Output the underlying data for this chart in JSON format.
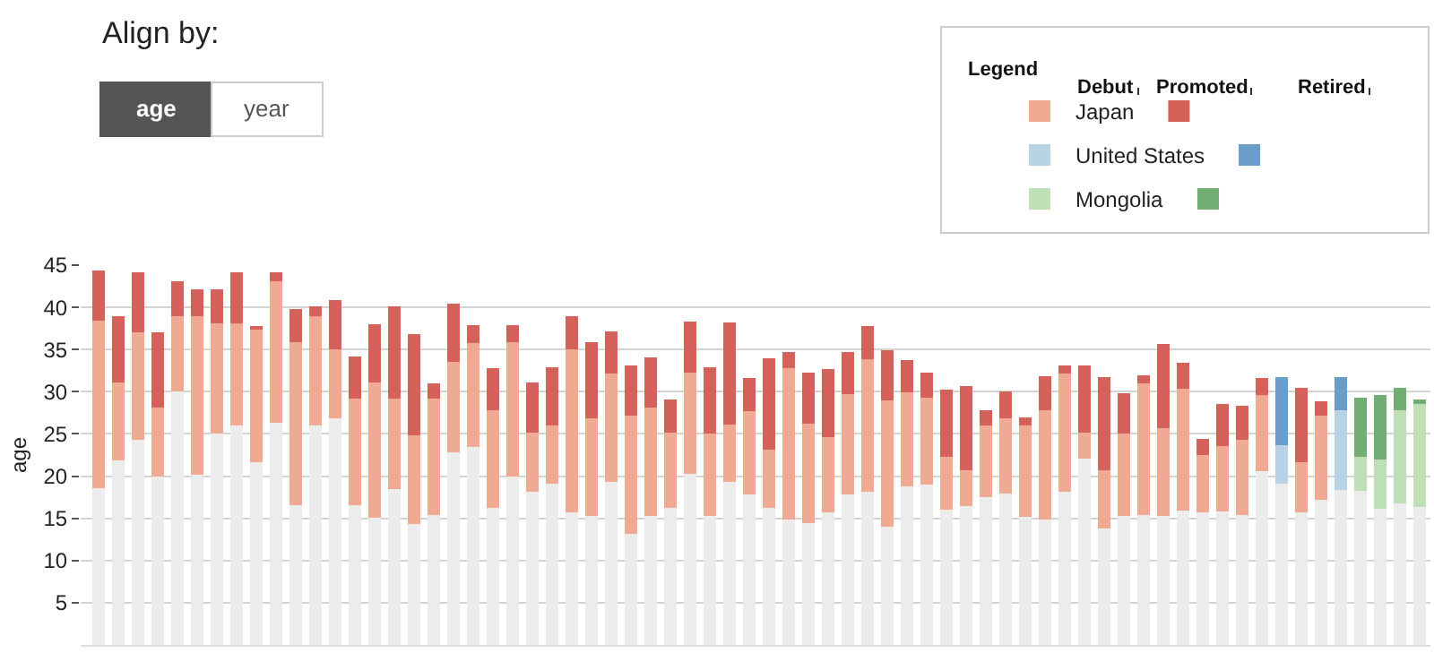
{
  "chart_data": {
    "type": "bar",
    "stacked": true,
    "ylabel": "age",
    "legend_title": "Legend",
    "legend": "top right",
    "grid": "y",
    "tick_labels": "y",
    "annotations": [
      "Align by:",
      "Debut",
      "Promoted",
      "Retired",
      "age",
      "year"
    ],
    "categories": [
      null,
      null,
      null,
      null,
      null,
      null,
      null,
      null,
      null,
      null,
      null,
      null,
      null,
      null,
      null,
      null,
      null,
      null,
      null,
      null,
      null,
      null,
      null,
      null,
      null,
      null,
      null,
      null,
      null,
      null,
      null,
      null,
      null,
      null,
      null,
      null,
      null,
      null,
      null,
      null,
      null,
      null,
      null,
      null,
      null,
      null,
      null,
      null,
      null,
      null,
      null,
      null,
      null,
      null,
      null,
      null,
      null,
      null,
      null,
      null,
      null,
      null,
      null,
      null,
      null,
      null,
      null,
      null
    ],
    "ylim": [
      0,
      45
    ],
    "yticks": [
      5,
      10,
      15,
      20,
      25,
      30,
      35,
      40,
      45
    ],
    "series": [
      {
        "color": "#ececec",
        "values": [
          18.6,
          21.9,
          24.3,
          20.0,
          30.0,
          20.2,
          25.0,
          26.0,
          21.6,
          26.3,
          16.6,
          26.0,
          26.9,
          16.6,
          15.1,
          18.5,
          14.3,
          15.4,
          22.8,
          23.5,
          16.2,
          20.0,
          18.2,
          19.1,
          15.7,
          15.3,
          19.3,
          13.2,
          15.3,
          16.2,
          20.3,
          15.3,
          19.3,
          17.8,
          16.2,
          14.9,
          14.4,
          15.7,
          17.8,
          18.2,
          14.0,
          18.8,
          19.0,
          16.0,
          16.4,
          17.5,
          17.9,
          15.2,
          14.9,
          18.2,
          22.1,
          13.8,
          15.3,
          15.4,
          15.3,
          15.9,
          15.7,
          15.8,
          15.4,
          20.6,
          19.1,
          15.7,
          17.2,
          18.4,
          18.3,
          16.1,
          16.8,
          16.3
        ]
      },
      {
        "name": "Japan",
        "color": "#f0a993",
        "values": [
          19.8,
          9.2,
          12.7,
          8.1,
          9.0,
          18.8,
          13.1,
          12.1,
          15.9,
          16.8,
          19.3,
          12.9,
          8.1,
          12.6,
          16.0,
          10.7,
          10.5,
          13.8,
          10.7,
          12.3,
          11.6,
          15.9,
          7.0,
          6.9,
          19.3,
          11.6,
          12.9,
          14.0,
          12.8,
          9.0,
          12.0,
          9.7,
          6.8,
          9.9,
          6.9,
          17.9,
          11.8,
          8.9,
          11.9,
          15.7,
          15.0,
          11.1,
          10.3,
          6.3,
          4.3,
          8.5,
          9.0,
          10.8,
          12.9,
          14.0,
          3.1,
          6.9,
          9.7,
          15.6,
          10.4,
          14.5,
          6.8,
          7.8,
          8.9,
          9.0,
          null,
          5.9,
          10.0,
          null,
          null,
          null,
          null,
          null
        ]
      },
      {
        "color": "#d4625b",
        "values": [
          6.0,
          7.9,
          7.1,
          8.9,
          4.1,
          3.1,
          4.0,
          6.0,
          0.2,
          1.0,
          3.9,
          1.2,
          5.9,
          5.0,
          6.9,
          10.9,
          12.0,
          1.8,
          6.9,
          2.1,
          5.0,
          2.0,
          5.9,
          6.9,
          3.9,
          9.0,
          5.0,
          5.9,
          6.0,
          3.9,
          6.0,
          7.9,
          12.1,
          3.9,
          10.9,
          1.9,
          6.1,
          8.1,
          5.0,
          3.9,
          5.9,
          3.9,
          3.0,
          7.9,
          10.0,
          1.8,
          3.1,
          1.0,
          4.0,
          0.9,
          7.9,
          11.0,
          4.8,
          0.9,
          10.0,
          3.0,
          1.9,
          5.0,
          4.0,
          2.0,
          null,
          8.9,
          1.7,
          null,
          null,
          null,
          null,
          null
        ]
      },
      {
        "name": "United States",
        "color": "#b8d3e5",
        "values": [
          null,
          null,
          null,
          null,
          null,
          null,
          null,
          null,
          null,
          null,
          null,
          null,
          null,
          null,
          null,
          null,
          null,
          null,
          null,
          null,
          null,
          null,
          null,
          null,
          null,
          null,
          null,
          null,
          null,
          null,
          null,
          null,
          null,
          null,
          null,
          null,
          null,
          null,
          null,
          null,
          null,
          null,
          null,
          null,
          null,
          null,
          null,
          null,
          null,
          null,
          null,
          null,
          null,
          null,
          null,
          null,
          null,
          null,
          null,
          null,
          4.6,
          null,
          null,
          9.4,
          null,
          null,
          null,
          null
        ]
      },
      {
        "color": "#6a9dc8",
        "values": [
          null,
          null,
          null,
          null,
          null,
          null,
          null,
          null,
          null,
          null,
          null,
          null,
          null,
          null,
          null,
          null,
          null,
          null,
          null,
          null,
          null,
          null,
          null,
          null,
          null,
          null,
          null,
          null,
          null,
          null,
          null,
          null,
          null,
          null,
          null,
          null,
          null,
          null,
          null,
          null,
          null,
          null,
          null,
          null,
          null,
          null,
          null,
          null,
          null,
          null,
          null,
          null,
          null,
          null,
          null,
          null,
          null,
          null,
          null,
          null,
          8.0,
          null,
          null,
          3.9,
          null,
          null,
          null,
          null
        ]
      },
      {
        "name": "Mongolia",
        "color": "#bfdfb6",
        "values": [
          null,
          null,
          null,
          null,
          null,
          null,
          null,
          null,
          null,
          null,
          null,
          null,
          null,
          null,
          null,
          null,
          null,
          null,
          null,
          null,
          null,
          null,
          null,
          null,
          null,
          null,
          null,
          null,
          null,
          null,
          null,
          null,
          null,
          null,
          null,
          null,
          null,
          null,
          null,
          null,
          null,
          null,
          null,
          null,
          null,
          null,
          null,
          null,
          null,
          null,
          null,
          null,
          null,
          null,
          null,
          null,
          null,
          null,
          null,
          null,
          null,
          null,
          null,
          null,
          4.0,
          5.9,
          11.0,
          12.2
        ]
      },
      {
        "color": "#72ad74",
        "values": [
          null,
          null,
          null,
          null,
          null,
          null,
          null,
          null,
          null,
          null,
          null,
          null,
          null,
          null,
          null,
          null,
          null,
          null,
          null,
          null,
          null,
          null,
          null,
          null,
          null,
          null,
          null,
          null,
          null,
          null,
          null,
          null,
          null,
          null,
          null,
          null,
          null,
          null,
          null,
          null,
          null,
          null,
          null,
          null,
          null,
          null,
          null,
          null,
          null,
          null,
          null,
          null,
          null,
          null,
          null,
          null,
          null,
          null,
          null,
          null,
          null,
          null,
          null,
          null,
          7.0,
          7.6,
          2.7,
          0.6
        ]
      }
    ]
  }
}
